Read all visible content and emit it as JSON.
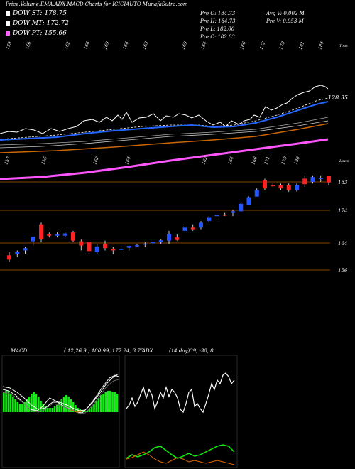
{
  "header": {
    "title": "Price,Volume,EMA,ADX,MACD Charts for ICICIAUTO MunafaSutra.com",
    "macd_label": "MACD:",
    "macd_params": "( 12,26,9 ) 180.99,  177.24, 3.73",
    "adx_label": "ADX",
    "adx_params": "(14  day)39,  -30,  8"
  },
  "legend": [
    {
      "label": "DOW ST: 178.75",
      "color": "#ffffff"
    },
    {
      "label": "DOW MT: 172.72",
      "color": "#ffffff"
    },
    {
      "label": "DOW PT: 155.66",
      "color": "#ff66ff"
    }
  ],
  "stats": {
    "prev_open": "Pre   O: 184.73",
    "prev_high": "Pre   H: 184.73",
    "prev_low": "Pre   L: 182.00",
    "prev_close": "Pre   C: 182.83",
    "avg_vol": "Avg V: 0.002  M",
    "prev_vol": "Pre   V: 0.053 M"
  },
  "colors": {
    "background": "#000000",
    "up": "#2255ff",
    "down": "#ff2222",
    "ema_fast": "#2266ff",
    "ema_slow": "#cc6600",
    "trend": "#ff55ff",
    "macd_hist": "#11ee11",
    "adx_white": "#ffffff",
    "adx_green": "#11ee11",
    "adx_orange": "#dd6600",
    "hline": "#884400"
  },
  "chart_data": {
    "type": "candlestick",
    "top_panel": {
      "tick_labels": [
        "159",
        "156",
        "",
        "162",
        "166",
        "169",
        "166",
        "163",
        "",
        "169",
        "164",
        "",
        "166",
        "172",
        "178",
        "181",
        "184"
      ],
      "axis_label": "Tops",
      "price_label": "128.35",
      "bottom_tick_labels": [
        "157",
        "155",
        "162",
        "164",
        "162",
        "164",
        "166",
        "171",
        "178",
        "180"
      ],
      "bottom_axis_label": "Lows"
    },
    "price_axis": [
      "183",
      "174",
      "164",
      "156"
    ],
    "candles": [
      {
        "o": 160.5,
        "h": 161.5,
        "l": 158.5,
        "c": 159.2
      },
      {
        "o": 161.0,
        "h": 162.0,
        "l": 160.0,
        "c": 161.5
      },
      {
        "o": 162.0,
        "h": 163.0,
        "l": 161.0,
        "c": 162.7
      },
      {
        "o": 164.8,
        "h": 166.0,
        "l": 163.5,
        "c": 166.2
      },
      {
        "o": 170.0,
        "h": 170.5,
        "l": 164.5,
        "c": 165.4
      },
      {
        "o": 167.0,
        "h": 167.5,
        "l": 166.0,
        "c": 166.5
      },
      {
        "o": 166.5,
        "h": 167.5,
        "l": 166.0,
        "c": 166.9
      },
      {
        "o": 166.5,
        "h": 167.5,
        "l": 166.0,
        "c": 167.2
      },
      {
        "o": 167.5,
        "h": 168.0,
        "l": 164.5,
        "c": 165.0
      },
      {
        "o": 164.8,
        "h": 165.3,
        "l": 162.0,
        "c": 163.5
      },
      {
        "o": 164.5,
        "h": 165.0,
        "l": 161.0,
        "c": 161.8
      },
      {
        "o": 161.5,
        "h": 164.0,
        "l": 161.0,
        "c": 163.2
      },
      {
        "o": 164.0,
        "h": 165.0,
        "l": 162.0,
        "c": 162.7
      },
      {
        "o": 162.5,
        "h": 163.0,
        "l": 160.8,
        "c": 162.0
      },
      {
        "o": 162.2,
        "h": 163.0,
        "l": 161.2,
        "c": 162.5
      },
      {
        "o": 162.8,
        "h": 163.5,
        "l": 162.0,
        "c": 163.4
      },
      {
        "o": 163.5,
        "h": 164.0,
        "l": 163.0,
        "c": 163.6
      },
      {
        "o": 163.8,
        "h": 164.5,
        "l": 163.0,
        "c": 164.1
      },
      {
        "o": 164.2,
        "h": 165.0,
        "l": 163.8,
        "c": 164.6
      },
      {
        "o": 164.5,
        "h": 165.5,
        "l": 164.0,
        "c": 165.1
      },
      {
        "o": 165.0,
        "h": 168.0,
        "l": 164.0,
        "c": 167.0
      },
      {
        "o": 166.0,
        "h": 167.0,
        "l": 165.0,
        "c": 165.2
      },
      {
        "o": 168.0,
        "h": 169.5,
        "l": 167.5,
        "c": 169.0
      },
      {
        "o": 169.0,
        "h": 170.0,
        "l": 168.0,
        "c": 168.5
      },
      {
        "o": 169.0,
        "h": 171.0,
        "l": 168.5,
        "c": 170.5
      },
      {
        "o": 171.0,
        "h": 172.5,
        "l": 170.5,
        "c": 172.0
      },
      {
        "o": 172.5,
        "h": 173.0,
        "l": 172.0,
        "c": 172.9
      },
      {
        "o": 173.0,
        "h": 173.5,
        "l": 172.5,
        "c": 172.9
      },
      {
        "o": 173.5,
        "h": 174.5,
        "l": 172.5,
        "c": 174.0
      },
      {
        "o": 174.0,
        "h": 176.5,
        "l": 174.0,
        "c": 176.3
      },
      {
        "o": 176.0,
        "h": 178.5,
        "l": 176.0,
        "c": 178.3
      },
      {
        "o": 178.5,
        "h": 181.0,
        "l": 178.5,
        "c": 180.5
      },
      {
        "o": 183.5,
        "h": 184.0,
        "l": 180.5,
        "c": 181.0
      },
      {
        "o": 182.0,
        "h": 182.5,
        "l": 181.5,
        "c": 181.8
      },
      {
        "o": 182.0,
        "h": 182.5,
        "l": 180.5,
        "c": 181.0
      },
      {
        "o": 182.0,
        "h": 182.5,
        "l": 180.0,
        "c": 180.5
      },
      {
        "o": 180.5,
        "h": 182.5,
        "l": 180.0,
        "c": 182.0
      },
      {
        "o": 184.0,
        "h": 185.0,
        "l": 181.5,
        "c": 182.3
      },
      {
        "o": 183.0,
        "h": 185.0,
        "l": 182.5,
        "c": 184.5
      },
      {
        "o": 184.0,
        "h": 185.0,
        "l": 183.0,
        "c": 184.2
      },
      {
        "o": 184.73,
        "h": 184.73,
        "l": 182.0,
        "c": 182.83
      }
    ]
  }
}
